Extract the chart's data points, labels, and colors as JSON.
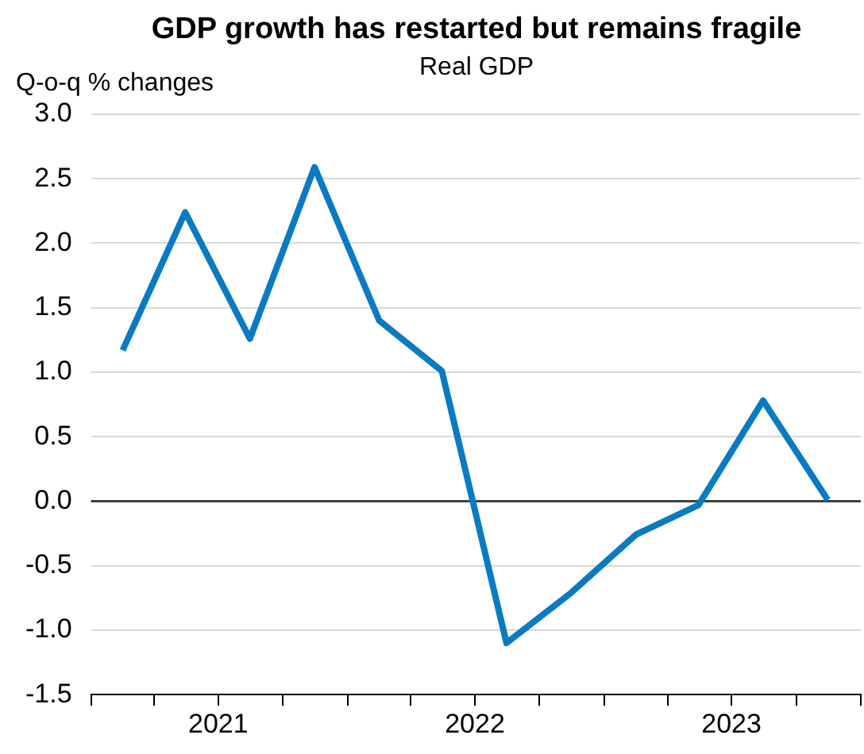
{
  "chart_data": {
    "type": "line",
    "title": "GDP growth has restarted but remains fragile",
    "subtitle": "Real GDP",
    "ylabel": "Q-o-q % changes",
    "x": [
      "2021-02-15",
      "2021-05-15",
      "2021-08-15",
      "2021-11-15",
      "2022-02-15",
      "2022-05-15",
      "2022-08-15",
      "2022-11-15",
      "2023-02-15",
      "2023-05-15",
      "2023-08-15",
      "2023-11-15"
    ],
    "series": [
      {
        "color": "#0a7bc2",
        "values": [
          1.17,
          2.24,
          1.26,
          2.59,
          1.4,
          1.01,
          -1.1,
          -0.71,
          -0.26,
          -0.03,
          0.78,
          0.01
        ]
      }
    ],
    "xlim": [
      "2021-01-01",
      "2024-01-01"
    ],
    "xticks": [
      {
        "value": "2021-01-01",
        "label": null
      },
      {
        "value": "2021-04-01",
        "label": null
      },
      {
        "value": "2021-07-01",
        "label": "2021"
      },
      {
        "value": "2021-10-01",
        "label": null
      },
      {
        "value": "2022-01-01",
        "label": null
      },
      {
        "value": "2022-04-01",
        "label": null
      },
      {
        "value": "2022-07-01",
        "label": "2022"
      },
      {
        "value": "2022-10-01",
        "label": null
      },
      {
        "value": "2023-01-01",
        "label": null
      },
      {
        "value": "2023-04-01",
        "label": null
      },
      {
        "value": "2023-07-01",
        "label": "2023"
      },
      {
        "value": "2023-10-01",
        "label": null
      },
      {
        "value": "2024-01-01",
        "label": null
      }
    ],
    "ylim": [
      -1.5,
      3.0
    ],
    "yticks": [
      {
        "value": -1.5,
        "label": "-1.5"
      },
      {
        "value": -1.0,
        "label": "-1.0"
      },
      {
        "value": -0.5,
        "label": "-0.5"
      },
      {
        "value": 0,
        "label": "0.0"
      },
      {
        "value": 0.5,
        "label": "0.5"
      },
      {
        "value": 1.0,
        "label": "1.0"
      },
      {
        "value": 1.5,
        "label": "1.5"
      },
      {
        "value": 2.0,
        "label": "2.0"
      },
      {
        "value": 2.5,
        "label": "2.5"
      },
      {
        "value": 3.0,
        "label": "3.0"
      }
    ],
    "grid": "y",
    "legend": false,
    "marker": "none",
    "line_style": "solid",
    "ref_lines": [
      {
        "axis": "y",
        "value": 0,
        "color": "#404040"
      }
    ]
  }
}
